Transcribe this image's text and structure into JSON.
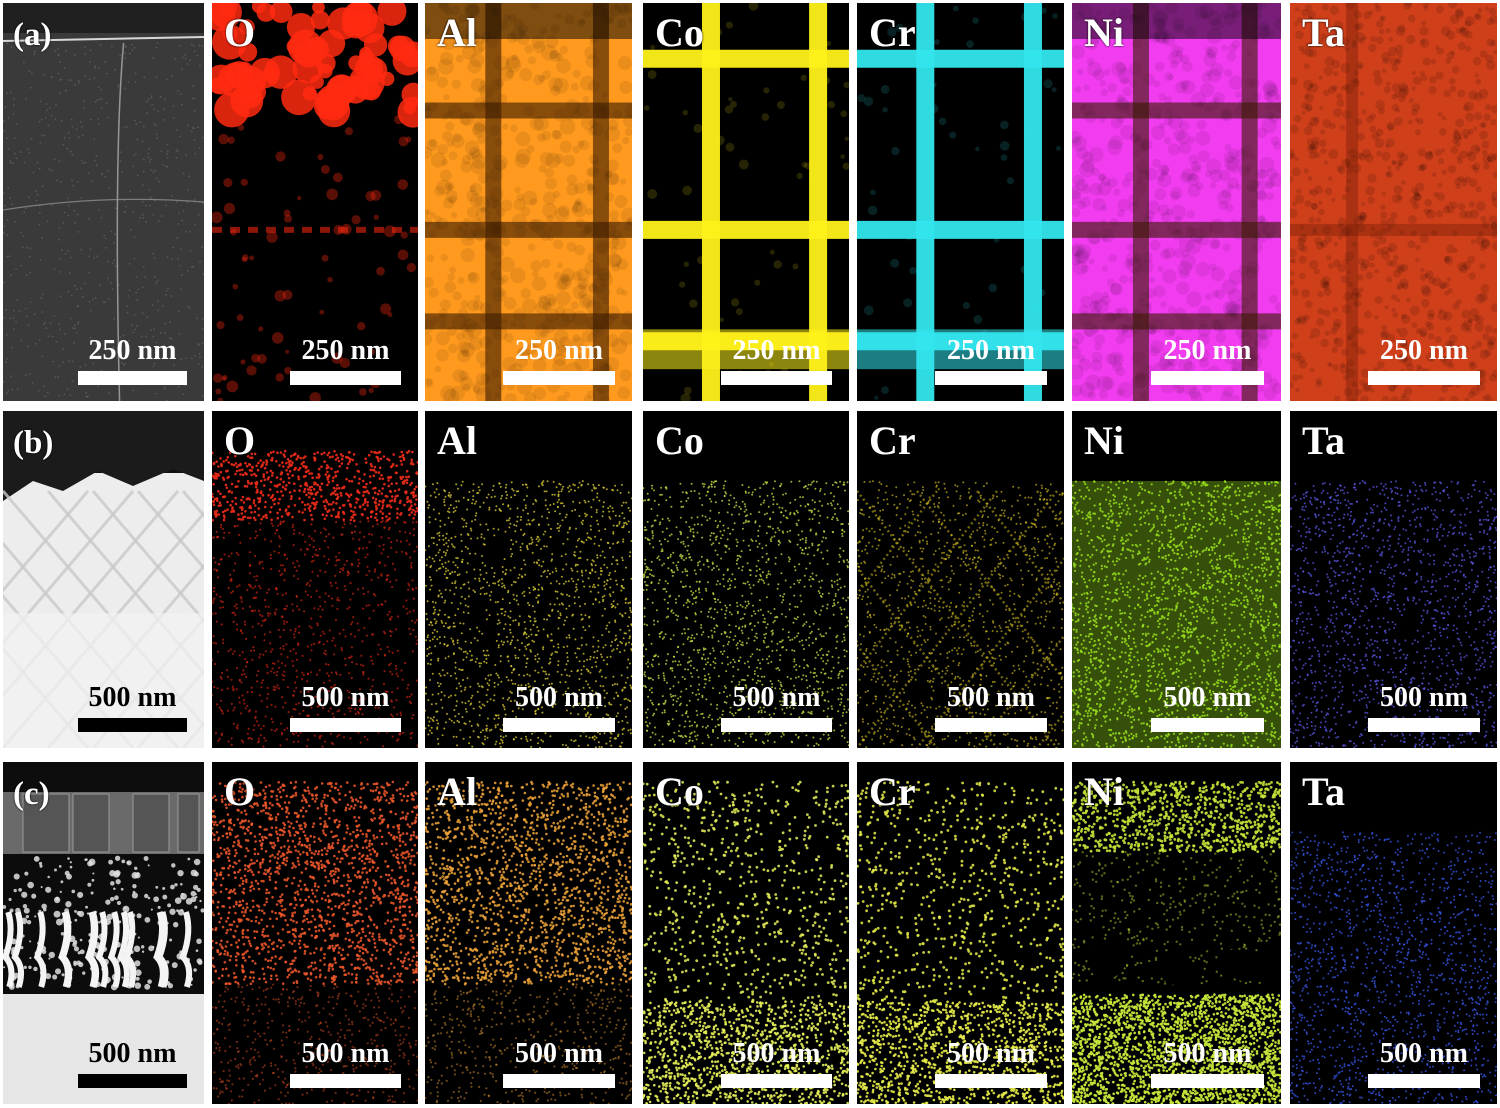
{
  "rows": [
    {
      "label": "(a)",
      "scale": "250 nm",
      "panels": [
        {
          "element": "",
          "color": "#bdbdbd",
          "kind": "sem-a"
        },
        {
          "element": "O",
          "color": "#ff2a10",
          "kind": "O-a"
        },
        {
          "element": "Al",
          "color": "#ff9a1e",
          "kind": "bright-grid"
        },
        {
          "element": "Co",
          "color": "#fff21a",
          "kind": "dark-grid"
        },
        {
          "element": "Cr",
          "color": "#33e6ee",
          "kind": "dark-grid"
        },
        {
          "element": "Ni",
          "color": "#f23cf0",
          "kind": "bright-grid"
        },
        {
          "element": "Ta",
          "color": "#f24a1e",
          "kind": "uniform"
        }
      ]
    },
    {
      "label": "(b)",
      "scale": "500 nm",
      "panels": [
        {
          "element": "",
          "color": "#dcdcdc",
          "kind": "sem-b"
        },
        {
          "element": "O",
          "color": "#e52a18",
          "kind": "dots-top"
        },
        {
          "element": "Al",
          "color": "#e0d23a",
          "kind": "dots-even"
        },
        {
          "element": "Co",
          "color": "#cfe24a",
          "kind": "dots-even"
        },
        {
          "element": "Cr",
          "color": "#e7d024",
          "kind": "dots-grid"
        },
        {
          "element": "Ni",
          "color": "#9ae11e",
          "kind": "dots-dense"
        },
        {
          "element": "Ta",
          "color": "#5a58e6",
          "kind": "dots-even"
        }
      ]
    },
    {
      "label": "(c)",
      "scale": "500 nm",
      "panels": [
        {
          "element": "",
          "color": "#d8d8d8",
          "kind": "sem-c"
        },
        {
          "element": "O",
          "color": "#f0582a",
          "kind": "dots-oxide"
        },
        {
          "element": "Al",
          "color": "#f0a43a",
          "kind": "dots-oxide"
        },
        {
          "element": "Co",
          "color": "#e6f05a",
          "kind": "dots-sparse"
        },
        {
          "element": "Cr",
          "color": "#e8ee4a",
          "kind": "dots-sparse"
        },
        {
          "element": "Ni",
          "color": "#c4e63a",
          "kind": "dots-ni"
        },
        {
          "element": "Ta",
          "color": "#3a5af0",
          "kind": "dots-even"
        }
      ]
    }
  ]
}
